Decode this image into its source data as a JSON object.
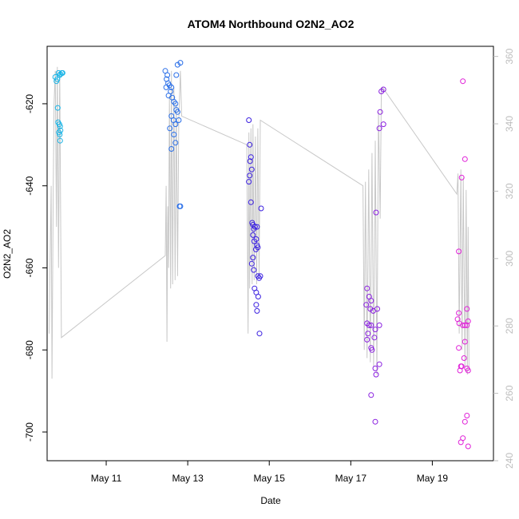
{
  "chart_data": {
    "type": "scatter",
    "title": "ATOM4 Northbound O2N2_AO2",
    "xlabel": "Date",
    "ylabel": "O2N2_AO2",
    "xlim": [
      9.55,
      20.5
    ],
    "ylim": [
      -707,
      -606
    ],
    "y2lim": [
      240,
      363
    ],
    "x_ticks": [
      {
        "value": 11,
        "label": "May 11"
      },
      {
        "value": 13,
        "label": "May 13"
      },
      {
        "value": 15,
        "label": "May 15"
      },
      {
        "value": 17,
        "label": "May 17"
      },
      {
        "value": 19,
        "label": "May 19"
      }
    ],
    "y_ticks": [
      -620,
      -640,
      -660,
      -680,
      -700
    ],
    "y2_ticks": [
      240,
      260,
      280,
      300,
      320,
      340,
      360
    ],
    "grid": false,
    "line_color": "#c8c8c8",
    "series": [
      {
        "color": "#19b4e6",
        "points": [
          [
            9.75,
            -613.5
          ],
          [
            9.78,
            -614.5
          ],
          [
            9.8,
            -614
          ],
          [
            9.83,
            -612.5
          ],
          [
            9.86,
            -613
          ],
          [
            9.88,
            -612.8
          ],
          [
            9.81,
            -621
          ],
          [
            9.82,
            -624.5
          ],
          [
            9.85,
            -625
          ],
          [
            9.87,
            -625.5
          ],
          [
            9.88,
            -626.5
          ],
          [
            9.84,
            -627
          ],
          [
            9.86,
            -627.5
          ],
          [
            9.87,
            -629
          ],
          [
            9.91,
            -612.5
          ],
          [
            9.93,
            -612.5
          ]
        ]
      },
      {
        "color": "#2a6fe8",
        "points": [
          [
            12.45,
            -612
          ],
          [
            12.5,
            -613
          ],
          [
            12.48,
            -614
          ],
          [
            12.52,
            -615
          ],
          [
            12.55,
            -615.5
          ],
          [
            12.47,
            -616
          ],
          [
            12.58,
            -617
          ],
          [
            12.6,
            -616
          ],
          [
            12.53,
            -618
          ],
          [
            12.62,
            -618.5
          ],
          [
            12.66,
            -619.5
          ],
          [
            12.7,
            -620
          ],
          [
            12.72,
            -621.5
          ],
          [
            12.75,
            -622
          ],
          [
            12.6,
            -623
          ],
          [
            12.65,
            -624
          ],
          [
            12.7,
            -625
          ],
          [
            12.78,
            -624
          ],
          [
            12.56,
            -626
          ],
          [
            12.66,
            -627.5
          ],
          [
            12.7,
            -629.5
          ],
          [
            12.6,
            -631
          ],
          [
            12.72,
            -613
          ],
          [
            12.75,
            -610.5
          ],
          [
            12.82,
            -610
          ],
          [
            12.8,
            -645
          ],
          [
            12.82,
            -645
          ]
        ]
      },
      {
        "color": "#3a1fe0",
        "points": [
          [
            14.5,
            -624
          ],
          [
            14.52,
            -630
          ],
          [
            14.55,
            -633
          ],
          [
            14.53,
            -634
          ],
          [
            14.57,
            -636
          ],
          [
            14.52,
            -637.5
          ],
          [
            14.5,
            -639
          ],
          [
            14.55,
            -644
          ],
          [
            14.58,
            -649
          ],
          [
            14.6,
            -649.5
          ],
          [
            14.62,
            -650.5
          ],
          [
            14.65,
            -650
          ],
          [
            14.7,
            -650
          ],
          [
            14.6,
            -652
          ],
          [
            14.63,
            -653.5
          ],
          [
            14.68,
            -653
          ],
          [
            14.7,
            -654.5
          ],
          [
            14.67,
            -655.5
          ],
          [
            14.72,
            -655
          ],
          [
            14.6,
            -657.5
          ],
          [
            14.57,
            -659
          ],
          [
            14.62,
            -660.5
          ],
          [
            14.72,
            -662
          ],
          [
            14.75,
            -662.5
          ],
          [
            14.78,
            -662
          ],
          [
            14.64,
            -665
          ],
          [
            14.68,
            -666
          ],
          [
            14.73,
            -667
          ],
          [
            14.68,
            -669
          ],
          [
            14.7,
            -670.5
          ],
          [
            14.76,
            -676
          ],
          [
            14.8,
            -645.5
          ]
        ]
      },
      {
        "color": "#8a1fe0",
        "points": [
          [
            17.75,
            -617
          ],
          [
            17.8,
            -616.5
          ],
          [
            17.72,
            -622
          ],
          [
            17.7,
            -626
          ],
          [
            17.8,
            -625
          ],
          [
            17.62,
            -646.5
          ],
          [
            17.4,
            -665
          ],
          [
            17.45,
            -667
          ],
          [
            17.5,
            -668
          ],
          [
            17.38,
            -669
          ],
          [
            17.48,
            -670
          ],
          [
            17.65,
            -670
          ],
          [
            17.55,
            -670.5
          ],
          [
            17.4,
            -673.5
          ],
          [
            17.45,
            -674
          ],
          [
            17.5,
            -674
          ],
          [
            17.7,
            -674
          ],
          [
            17.6,
            -675
          ],
          [
            17.42,
            -676
          ],
          [
            17.58,
            -677
          ],
          [
            17.4,
            -677.5
          ],
          [
            17.5,
            -679.5
          ],
          [
            17.52,
            -680
          ],
          [
            17.7,
            -683.5
          ],
          [
            17.6,
            -684.5
          ],
          [
            17.62,
            -686
          ],
          [
            17.5,
            -691
          ],
          [
            17.6,
            -697.5
          ]
        ]
      },
      {
        "color": "#e020d8",
        "points": [
          [
            19.75,
            -614.5
          ],
          [
            19.8,
            -633.5
          ],
          [
            19.72,
            -638
          ],
          [
            19.65,
            -656
          ],
          [
            19.65,
            -671
          ],
          [
            19.62,
            -672.5
          ],
          [
            19.66,
            -673.5
          ],
          [
            19.85,
            -670
          ],
          [
            19.88,
            -673
          ],
          [
            19.75,
            -674
          ],
          [
            19.8,
            -674
          ],
          [
            19.85,
            -674
          ],
          [
            19.8,
            -678
          ],
          [
            19.65,
            -679.5
          ],
          [
            19.78,
            -682
          ],
          [
            19.72,
            -684
          ],
          [
            19.85,
            -684.5
          ],
          [
            19.88,
            -685
          ],
          [
            19.68,
            -685
          ],
          [
            19.7,
            -684
          ],
          [
            19.75,
            -701.5
          ],
          [
            19.85,
            -696
          ],
          [
            19.8,
            -697.5
          ],
          [
            19.7,
            -702.5
          ],
          [
            19.88,
            -703.5
          ]
        ]
      }
    ],
    "line": [
      [
        9.6,
        -676
      ],
      [
        9.62,
        -660
      ],
      [
        9.65,
        -640
      ],
      [
        9.67,
        -687
      ],
      [
        9.7,
        -640
      ],
      [
        9.72,
        -620
      ],
      [
        9.75,
        -612
      ],
      [
        9.78,
        -650
      ],
      [
        9.8,
        -611
      ],
      [
        9.83,
        -660
      ],
      [
        9.86,
        -612
      ],
      [
        9.9,
        -677
      ],
      [
        12.45,
        -657
      ],
      [
        12.47,
        -640
      ],
      [
        12.49,
        -678
      ],
      [
        12.51,
        -645
      ],
      [
        12.53,
        -660
      ],
      [
        12.55,
        -618
      ],
      [
        12.58,
        -665
      ],
      [
        12.6,
        -612
      ],
      [
        12.63,
        -664
      ],
      [
        12.66,
        -616
      ],
      [
        12.69,
        -663
      ],
      [
        12.72,
        -620
      ],
      [
        12.75,
        -662
      ],
      [
        12.78,
        -624
      ],
      [
        12.82,
        -612
      ],
      [
        12.85,
        -623
      ],
      [
        14.45,
        -630
      ],
      [
        14.48,
        -676
      ],
      [
        14.5,
        -627
      ],
      [
        14.52,
        -665
      ],
      [
        14.55,
        -626
      ],
      [
        14.58,
        -664
      ],
      [
        14.6,
        -625
      ],
      [
        14.63,
        -663
      ],
      [
        14.66,
        -628
      ],
      [
        14.69,
        -664
      ],
      [
        14.72,
        -626
      ],
      [
        14.75,
        -662
      ],
      [
        14.78,
        -624
      ],
      [
        17.3,
        -640
      ],
      [
        17.33,
        -680
      ],
      [
        17.36,
        -639
      ],
      [
        17.4,
        -682
      ],
      [
        17.44,
        -636
      ],
      [
        17.48,
        -683
      ],
      [
        17.52,
        -632
      ],
      [
        17.56,
        -684
      ],
      [
        17.6,
        -629
      ],
      [
        17.64,
        -686
      ],
      [
        17.68,
        -622
      ],
      [
        17.72,
        -648
      ],
      [
        17.75,
        -617
      ],
      [
        17.78,
        -616
      ],
      [
        19.6,
        -642
      ],
      [
        19.63,
        -637
      ],
      [
        19.66,
        -676
      ],
      [
        19.7,
        -636
      ],
      [
        19.73,
        -680
      ],
      [
        19.76,
        -638
      ],
      [
        19.8,
        -684
      ],
      [
        19.83,
        -641
      ],
      [
        19.86,
        -686
      ],
      [
        19.88,
        -650
      ],
      [
        19.9,
        -685
      ]
    ]
  }
}
